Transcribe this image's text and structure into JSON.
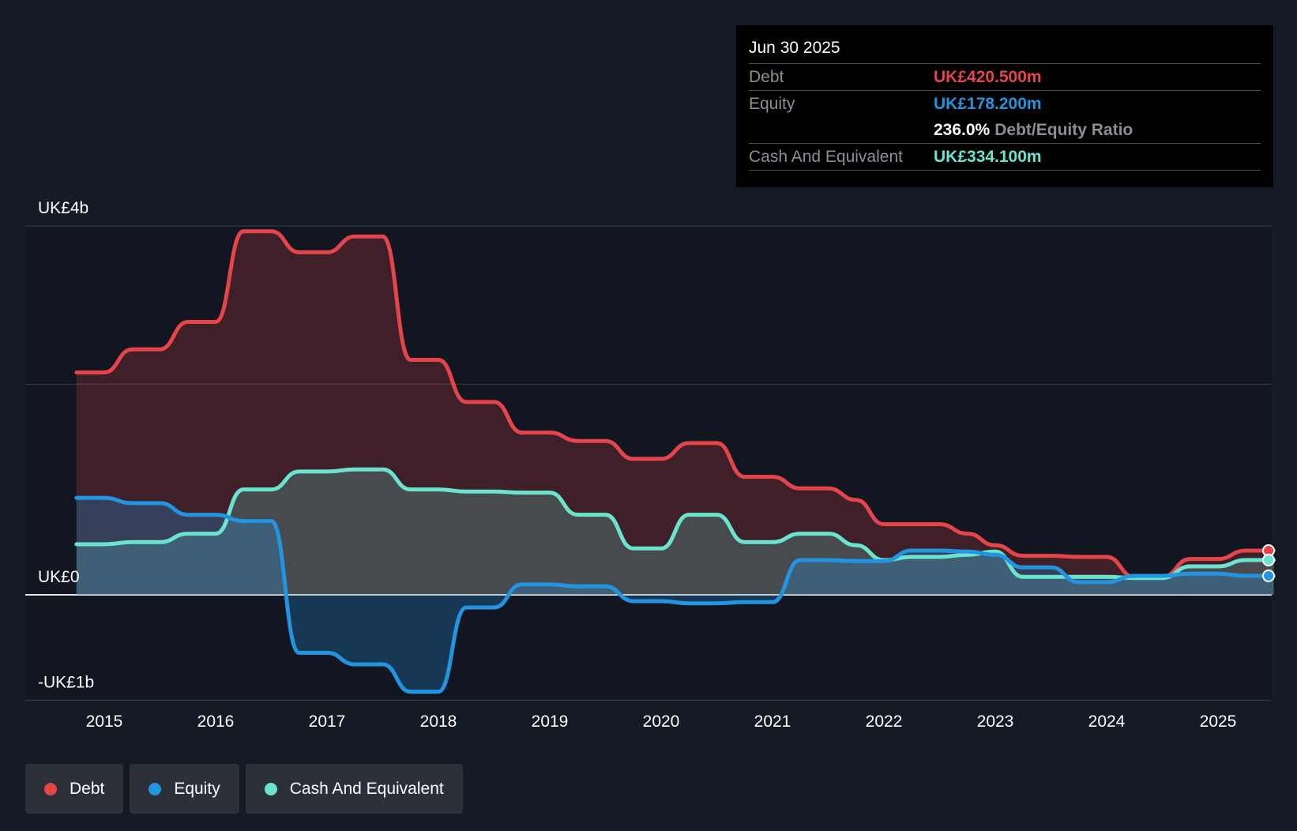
{
  "colors": {
    "background": "#151b24",
    "plot_background": "#111620",
    "debt": "#e5444b",
    "equity": "#2394df",
    "cash": "#6ae4ce",
    "grid": "#3a3f47",
    "text": "#ffffff",
    "muted": "#8a8f98"
  },
  "tooltip": {
    "date": "Jun 30 2025",
    "rows": [
      {
        "label": "Debt",
        "value": "UK£420.500m"
      },
      {
        "label": "Equity",
        "value": "UK£178.200m"
      },
      {
        "label": "",
        "ratio_value": "236.0%",
        "ratio_label": "Debt/Equity Ratio"
      },
      {
        "label": "Cash And Equivalent",
        "value": "UK£334.100m"
      }
    ]
  },
  "legend": [
    {
      "label": "Debt",
      "color": "#e5444b"
    },
    {
      "label": "Equity",
      "color": "#2394df"
    },
    {
      "label": "Cash And Equivalent",
      "color": "#6ae4ce"
    }
  ],
  "chart_data": {
    "type": "area",
    "title": "",
    "xlabel": "",
    "ylabel": "",
    "xlim": [
      2014.7,
      2025.5
    ],
    "ylim": [
      -1.0,
      3.5
    ],
    "y_axis_labels": [
      {
        "label": "UK£4b",
        "value": 3.5
      },
      {
        "label": "UK£0",
        "value": 0
      },
      {
        "label": "-UK£1b",
        "value": -1.0
      }
    ],
    "gridlines": [
      3.5,
      2.0,
      0
    ],
    "x_ticks": [
      2015,
      2016,
      2017,
      2018,
      2019,
      2020,
      2021,
      2022,
      2023,
      2024,
      2025
    ],
    "x_tick_labels": [
      "2015",
      "2016",
      "2017",
      "2018",
      "2019",
      "2020",
      "2021",
      "2022",
      "2023",
      "2024",
      "2025"
    ],
    "series": [
      {
        "name": "Debt",
        "color": "#e5444b",
        "points": [
          [
            2014.75,
            2.11
          ],
          [
            2015.0,
            2.11
          ],
          [
            2015.25,
            2.33
          ],
          [
            2015.5,
            2.33
          ],
          [
            2015.75,
            2.59
          ],
          [
            2016.0,
            2.59
          ],
          [
            2016.25,
            3.45
          ],
          [
            2016.5,
            3.45
          ],
          [
            2016.75,
            3.25
          ],
          [
            2017.0,
            3.25
          ],
          [
            2017.25,
            3.4
          ],
          [
            2017.5,
            3.4
          ],
          [
            2017.75,
            2.23
          ],
          [
            2018.0,
            2.23
          ],
          [
            2018.25,
            1.83
          ],
          [
            2018.5,
            1.83
          ],
          [
            2018.75,
            1.54
          ],
          [
            2019.0,
            1.54
          ],
          [
            2019.25,
            1.46
          ],
          [
            2019.5,
            1.46
          ],
          [
            2019.75,
            1.29
          ],
          [
            2020.0,
            1.29
          ],
          [
            2020.25,
            1.44
          ],
          [
            2020.5,
            1.44
          ],
          [
            2020.75,
            1.12
          ],
          [
            2021.0,
            1.12
          ],
          [
            2021.25,
            1.01
          ],
          [
            2021.5,
            1.01
          ],
          [
            2021.75,
            0.9
          ],
          [
            2022.0,
            0.67
          ],
          [
            2022.25,
            0.67
          ],
          [
            2022.5,
            0.67
          ],
          [
            2022.75,
            0.58
          ],
          [
            2023.0,
            0.47
          ],
          [
            2023.25,
            0.37
          ],
          [
            2023.5,
            0.37
          ],
          [
            2023.75,
            0.36
          ],
          [
            2024.0,
            0.36
          ],
          [
            2024.25,
            0.17
          ],
          [
            2024.5,
            0.17
          ],
          [
            2024.75,
            0.34
          ],
          [
            2025.0,
            0.34
          ],
          [
            2025.25,
            0.42
          ],
          [
            2025.5,
            0.42
          ]
        ]
      },
      {
        "name": "Equity",
        "color": "#2394df",
        "points": [
          [
            2014.75,
            0.92
          ],
          [
            2015.0,
            0.92
          ],
          [
            2015.25,
            0.87
          ],
          [
            2015.5,
            0.87
          ],
          [
            2015.75,
            0.76
          ],
          [
            2016.0,
            0.76
          ],
          [
            2016.25,
            0.7
          ],
          [
            2016.5,
            0.7
          ],
          [
            2016.75,
            -0.55
          ],
          [
            2017.0,
            -0.55
          ],
          [
            2017.25,
            -0.66
          ],
          [
            2017.5,
            -0.66
          ],
          [
            2017.75,
            -0.92
          ],
          [
            2018.0,
            -0.92
          ],
          [
            2018.25,
            -0.12
          ],
          [
            2018.5,
            -0.12
          ],
          [
            2018.75,
            0.1
          ],
          [
            2019.0,
            0.1
          ],
          [
            2019.25,
            0.08
          ],
          [
            2019.5,
            0.08
          ],
          [
            2019.75,
            -0.06
          ],
          [
            2020.0,
            -0.06
          ],
          [
            2020.25,
            -0.08
          ],
          [
            2020.5,
            -0.08
          ],
          [
            2020.75,
            -0.07
          ],
          [
            2021.0,
            -0.07
          ],
          [
            2021.25,
            0.33
          ],
          [
            2021.5,
            0.33
          ],
          [
            2021.75,
            0.32
          ],
          [
            2022.0,
            0.32
          ],
          [
            2022.25,
            0.42
          ],
          [
            2022.5,
            0.42
          ],
          [
            2022.75,
            0.41
          ],
          [
            2023.0,
            0.38
          ],
          [
            2023.25,
            0.26
          ],
          [
            2023.5,
            0.26
          ],
          [
            2023.75,
            0.12
          ],
          [
            2024.0,
            0.12
          ],
          [
            2024.25,
            0.18
          ],
          [
            2024.5,
            0.18
          ],
          [
            2024.75,
            0.2
          ],
          [
            2025.0,
            0.2
          ],
          [
            2025.25,
            0.18
          ],
          [
            2025.5,
            0.18
          ]
        ]
      },
      {
        "name": "Cash And Equivalent",
        "color": "#6ae4ce",
        "points": [
          [
            2014.75,
            0.48
          ],
          [
            2015.0,
            0.48
          ],
          [
            2015.25,
            0.5
          ],
          [
            2015.5,
            0.5
          ],
          [
            2015.75,
            0.58
          ],
          [
            2016.0,
            0.58
          ],
          [
            2016.25,
            1.0
          ],
          [
            2016.5,
            1.0
          ],
          [
            2016.75,
            1.17
          ],
          [
            2017.0,
            1.17
          ],
          [
            2017.25,
            1.19
          ],
          [
            2017.5,
            1.19
          ],
          [
            2017.75,
            1.0
          ],
          [
            2018.0,
            1.0
          ],
          [
            2018.25,
            0.98
          ],
          [
            2018.5,
            0.98
          ],
          [
            2018.75,
            0.97
          ],
          [
            2019.0,
            0.97
          ],
          [
            2019.25,
            0.76
          ],
          [
            2019.5,
            0.76
          ],
          [
            2019.75,
            0.44
          ],
          [
            2020.0,
            0.44
          ],
          [
            2020.25,
            0.76
          ],
          [
            2020.5,
            0.76
          ],
          [
            2020.75,
            0.5
          ],
          [
            2021.0,
            0.5
          ],
          [
            2021.25,
            0.58
          ],
          [
            2021.5,
            0.58
          ],
          [
            2021.75,
            0.47
          ],
          [
            2022.0,
            0.33
          ],
          [
            2022.25,
            0.36
          ],
          [
            2022.5,
            0.36
          ],
          [
            2022.75,
            0.38
          ],
          [
            2023.0,
            0.41
          ],
          [
            2023.25,
            0.17
          ],
          [
            2023.5,
            0.17
          ],
          [
            2023.75,
            0.17
          ],
          [
            2024.0,
            0.17
          ],
          [
            2024.25,
            0.16
          ],
          [
            2024.5,
            0.16
          ],
          [
            2024.75,
            0.27
          ],
          [
            2025.0,
            0.27
          ],
          [
            2025.25,
            0.33
          ],
          [
            2025.5,
            0.33
          ]
        ]
      }
    ]
  }
}
